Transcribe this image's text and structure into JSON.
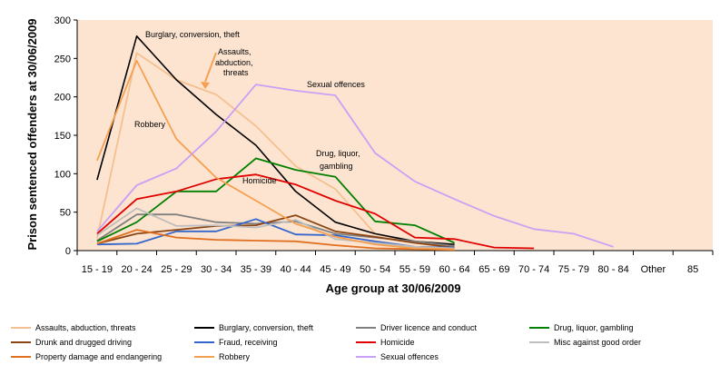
{
  "chart_data": {
    "type": "line",
    "title": "",
    "xlabel": "Age group at 30/06/2009",
    "ylabel": "Prison sentenced offenders at 30/06/2009",
    "ylim": [
      0,
      300
    ],
    "yticks": [
      0,
      50,
      100,
      150,
      200,
      250,
      300
    ],
    "grid": false,
    "legend_position": "bottom",
    "categories": [
      "15 - 19",
      "20 - 24",
      "25 - 29",
      "30 - 34",
      "35 - 39",
      "40 - 44",
      "45 - 49",
      "50 - 54",
      "55 - 59",
      "60 - 64",
      "65 - 69",
      "70 - 74",
      "75 - 79",
      "80 - 84",
      "Other",
      "85"
    ],
    "series": [
      {
        "name": "Assaults, abduction, threats",
        "color": "#f5c08f",
        "values": [
          16,
          257,
          222,
          203,
          162,
          110,
          80,
          22,
          10,
          3,
          null,
          null,
          null,
          null,
          null,
          null
        ]
      },
      {
        "name": "Burglary, conversion, theft",
        "color": "#000000",
        "values": [
          92,
          279,
          222,
          177,
          137,
          77,
          37,
          22,
          12,
          8,
          null,
          null,
          null,
          null,
          null,
          null
        ]
      },
      {
        "name": "Driver licence and conduct",
        "color": "#808080",
        "values": [
          13,
          47,
          47,
          37,
          35,
          38,
          22,
          17,
          12,
          6,
          null,
          null,
          null,
          null,
          null,
          null
        ]
      },
      {
        "name": "Drug, liquor, gambling",
        "color": "#008000",
        "values": [
          12,
          37,
          77,
          77,
          120,
          105,
          96,
          38,
          33,
          10,
          null,
          null,
          null,
          null,
          null,
          null
        ]
      },
      {
        "name": "Drunk and drugged driving",
        "color": "#8b4513",
        "values": [
          9,
          22,
          27,
          32,
          33,
          46,
          25,
          18,
          10,
          4,
          null,
          null,
          null,
          null,
          null,
          null
        ]
      },
      {
        "name": "Fraud, receiving",
        "color": "#3366cc",
        "values": [
          8,
          9,
          25,
          25,
          41,
          21,
          20,
          12,
          5,
          4,
          null,
          null,
          null,
          null,
          null,
          null
        ]
      },
      {
        "name": "Homicide",
        "color": "#e00000",
        "values": [
          22,
          67,
          77,
          93,
          99,
          86,
          65,
          48,
          17,
          15,
          4,
          3,
          null,
          null,
          null,
          null
        ]
      },
      {
        "name": "Misc against good order",
        "color": "#bdbdbd",
        "values": [
          20,
          55,
          32,
          33,
          30,
          40,
          15,
          10,
          5,
          3,
          null,
          null,
          null,
          null,
          null,
          null
        ]
      },
      {
        "name": "Property damage and endangering",
        "color": "#e07020",
        "values": [
          9,
          27,
          17,
          14,
          13,
          12,
          7,
          3,
          2,
          1,
          null,
          null,
          null,
          null,
          null,
          null
        ]
      },
      {
        "name": "Robbery",
        "color": "#f5a050",
        "values": [
          117,
          247,
          145,
          95,
          65,
          35,
          18,
          8,
          3,
          2,
          null,
          null,
          null,
          null,
          null,
          null
        ]
      },
      {
        "name": "Sexual offences",
        "color": "#c8a0f5",
        "values": [
          25,
          85,
          107,
          155,
          216,
          208,
          202,
          127,
          90,
          67,
          45,
          28,
          22,
          5,
          null,
          null
        ]
      }
    ],
    "annotations": [
      {
        "text": "Burglary, conversion, theft"
      },
      {
        "text": "Assaults,"
      },
      {
        "text": "abduction,"
      },
      {
        "text": "threats"
      },
      {
        "text": "Sexual offences"
      },
      {
        "text": "Robbery"
      },
      {
        "text": "Drug, liquor,"
      },
      {
        "text": "gambling"
      },
      {
        "text": "Homicide"
      }
    ]
  }
}
